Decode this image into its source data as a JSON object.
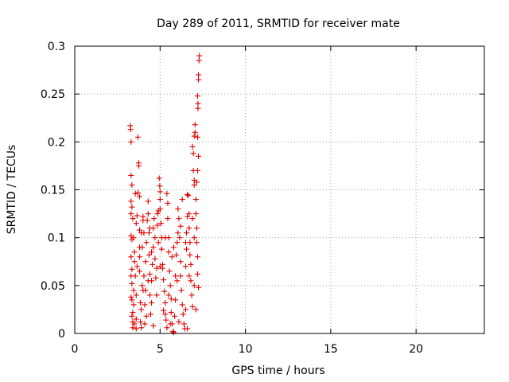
{
  "chart_data": {
    "type": "scatter",
    "title": "Day 289 of 2011, SRMTID for receiver mate",
    "xlabel": "GPS time / hours",
    "ylabel": "SRMTID / TECUs",
    "xlim": [
      0,
      24
    ],
    "ylim": [
      0,
      0.3
    ],
    "xticks": [
      0,
      5,
      10,
      15,
      20
    ],
    "xtick_labels": [
      "0",
      "5",
      "10",
      "15",
      "20"
    ],
    "yticks": [
      0,
      0.05,
      0.1,
      0.15,
      0.2,
      0.25,
      0.3
    ],
    "ytick_labels": [
      "0",
      "0.05",
      "0.1",
      "0.15",
      "0.2",
      "0.25",
      "0.3"
    ],
    "grid": true,
    "marker": "+",
    "color": "#e00000",
    "series": [
      {
        "name": "SRMTID",
        "points": [
          [
            3.25,
            0.217
          ],
          [
            3.27,
            0.213
          ],
          [
            3.3,
            0.2
          ],
          [
            3.3,
            0.165
          ],
          [
            3.35,
            0.155
          ],
          [
            3.3,
            0.138
          ],
          [
            3.35,
            0.132
          ],
          [
            3.3,
            0.125
          ],
          [
            3.3,
            0.102
          ],
          [
            3.35,
            0.098
          ],
          [
            3.3,
            0.08
          ],
          [
            3.35,
            0.067
          ],
          [
            3.3,
            0.06
          ],
          [
            3.35,
            0.052
          ],
          [
            3.3,
            0.038
          ],
          [
            3.35,
            0.035
          ],
          [
            3.4,
            0.022
          ],
          [
            3.35,
            0.018
          ],
          [
            3.4,
            0.012
          ],
          [
            3.4,
            0.006
          ],
          [
            3.45,
            0.03
          ],
          [
            3.45,
            0.045
          ],
          [
            3.5,
            0.075
          ],
          [
            3.5,
            0.085
          ],
          [
            3.55,
            0.146
          ],
          [
            3.6,
            0.015
          ],
          [
            3.6,
            0.04
          ],
          [
            3.65,
            0.07
          ],
          [
            3.65,
            0.123
          ],
          [
            3.7,
            0.205
          ],
          [
            3.75,
            0.178
          ],
          [
            3.75,
            0.175
          ],
          [
            3.7,
            0.147
          ],
          [
            3.8,
            0.143
          ],
          [
            3.8,
            0.108
          ],
          [
            3.8,
            0.08
          ],
          [
            3.8,
            0.065
          ],
          [
            3.85,
            0.032
          ],
          [
            3.85,
            0.012
          ],
          [
            3.9,
            0.006
          ],
          [
            3.9,
            0.025
          ],
          [
            3.95,
            0.05
          ],
          [
            3.95,
            0.09
          ],
          [
            4.0,
            0.122
          ],
          [
            4.0,
            0.118
          ],
          [
            4.05,
            0.105
          ],
          [
            4.05,
            0.06
          ],
          [
            4.1,
            0.03
          ],
          [
            4.1,
            0.01
          ],
          [
            4.15,
            0.045
          ],
          [
            4.15,
            0.075
          ],
          [
            4.2,
            0.095
          ],
          [
            4.25,
            0.118
          ],
          [
            4.3,
            0.138
          ],
          [
            4.3,
            0.125
          ],
          [
            4.35,
            0.105
          ],
          [
            4.35,
            0.082
          ],
          [
            4.4,
            0.062
          ],
          [
            4.4,
            0.04
          ],
          [
            4.45,
            0.02
          ],
          [
            4.5,
            0.032
          ],
          [
            4.5,
            0.055
          ],
          [
            4.55,
            0.072
          ],
          [
            4.6,
            0.09
          ],
          [
            4.6,
            0.11
          ],
          [
            4.65,
            0.12
          ],
          [
            4.7,
            0.1
          ],
          [
            4.7,
            0.078
          ],
          [
            4.75,
            0.058
          ],
          [
            4.8,
            0.04
          ],
          [
            4.85,
            0.125
          ],
          [
            4.85,
            0.113
          ],
          [
            4.9,
            0.128
          ],
          [
            4.95,
            0.162
          ],
          [
            4.98,
            0.154
          ],
          [
            5.0,
            0.148
          ],
          [
            5.0,
            0.14
          ],
          [
            5.0,
            0.13
          ],
          [
            5.05,
            0.115
          ],
          [
            5.1,
            0.1
          ],
          [
            5.1,
            0.088
          ],
          [
            5.15,
            0.072
          ],
          [
            5.15,
            0.068
          ],
          [
            5.2,
            0.056
          ],
          [
            5.25,
            0.044
          ],
          [
            5.3,
            0.032
          ],
          [
            5.3,
            0.02
          ],
          [
            5.35,
            0.014
          ],
          [
            5.4,
            0.006
          ],
          [
            5.4,
            0.146
          ],
          [
            5.45,
            0.136
          ],
          [
            5.45,
            0.12
          ],
          [
            5.5,
            0.1
          ],
          [
            5.5,
            0.085
          ],
          [
            5.55,
            0.065
          ],
          [
            5.6,
            0.05
          ],
          [
            5.65,
            0.036
          ],
          [
            5.65,
            0.022
          ],
          [
            5.7,
            0.01
          ],
          [
            5.75,
            0.002
          ],
          [
            5.8,
            0.001
          ],
          [
            5.85,
            0.018
          ],
          [
            5.9,
            0.035
          ],
          [
            5.9,
            0.06
          ],
          [
            5.95,
            0.082
          ],
          [
            6.0,
            0.095
          ],
          [
            6.05,
            0.105
          ],
          [
            6.05,
            0.13
          ],
          [
            6.1,
            0.12
          ],
          [
            6.15,
            0.1
          ],
          [
            6.2,
            0.075
          ],
          [
            6.2,
            0.06
          ],
          [
            6.25,
            0.045
          ],
          [
            6.3,
            0.03
          ],
          [
            6.35,
            0.02
          ],
          [
            6.4,
            0.01
          ],
          [
            6.45,
            0.005
          ],
          [
            6.5,
            0.025
          ],
          [
            6.5,
            0.07
          ],
          [
            6.55,
            0.088
          ],
          [
            6.55,
            0.105
          ],
          [
            6.6,
            0.122
          ],
          [
            6.6,
            0.145
          ],
          [
            6.65,
            0.144
          ],
          [
            6.7,
            0.125
          ],
          [
            6.7,
            0.11
          ],
          [
            6.75,
            0.095
          ],
          [
            6.75,
            0.082
          ],
          [
            6.8,
            0.072
          ],
          [
            6.8,
            0.055
          ],
          [
            6.85,
            0.04
          ],
          [
            6.9,
            0.028
          ],
          [
            6.9,
            0.195
          ],
          [
            6.95,
            0.188
          ],
          [
            6.95,
            0.17
          ],
          [
            7.0,
            0.16
          ],
          [
            7.0,
            0.155
          ],
          [
            7.05,
            0.21
          ],
          [
            7.05,
            0.218
          ],
          [
            7.0,
            0.206
          ],
          [
            7.1,
            0.14
          ],
          [
            7.1,
            0.125
          ],
          [
            7.15,
            0.11
          ],
          [
            7.15,
            0.095
          ],
          [
            7.2,
            0.08
          ],
          [
            7.2,
            0.062
          ],
          [
            7.25,
            0.048
          ],
          [
            7.2,
            0.248
          ],
          [
            7.22,
            0.235
          ],
          [
            7.22,
            0.24
          ],
          [
            7.25,
            0.265
          ],
          [
            7.25,
            0.27
          ],
          [
            7.28,
            0.285
          ],
          [
            7.3,
            0.29
          ],
          [
            7.2,
            0.205
          ],
          [
            7.25,
            0.185
          ],
          [
            7.2,
            0.17
          ],
          [
            7.15,
            0.158
          ],
          [
            3.5,
            0.01
          ],
          [
            3.6,
            0.005
          ],
          [
            4.2,
            0.018
          ],
          [
            4.6,
            0.008
          ],
          [
            5.2,
            0.024
          ],
          [
            5.6,
            0.01
          ],
          [
            6.1,
            0.012
          ],
          [
            6.6,
            0.005
          ],
          [
            7.1,
            0.025
          ],
          [
            7.0,
            0.05
          ],
          [
            6.3,
            0.14
          ],
          [
            6.2,
            0.112
          ],
          [
            5.8,
            0.09
          ],
          [
            5.3,
            0.1
          ],
          [
            4.9,
            0.095
          ],
          [
            4.4,
            0.11
          ],
          [
            3.9,
            0.105
          ],
          [
            3.6,
            0.115
          ],
          [
            3.4,
            0.12
          ],
          [
            3.45,
            0.1
          ],
          [
            4.0,
            0.045
          ],
          [
            4.5,
            0.085
          ],
          [
            5.0,
            0.07
          ],
          [
            5.5,
            0.04
          ],
          [
            6.0,
            0.055
          ],
          [
            6.5,
            0.095
          ],
          [
            7.0,
            0.1
          ],
          [
            6.9,
            0.12
          ],
          [
            6.7,
            0.06
          ],
          [
            5.7,
            0.08
          ],
          [
            4.8,
            0.068
          ],
          [
            4.3,
            0.055
          ],
          [
            3.8,
            0.09
          ],
          [
            3.55,
            0.06
          ]
        ]
      }
    ]
  }
}
